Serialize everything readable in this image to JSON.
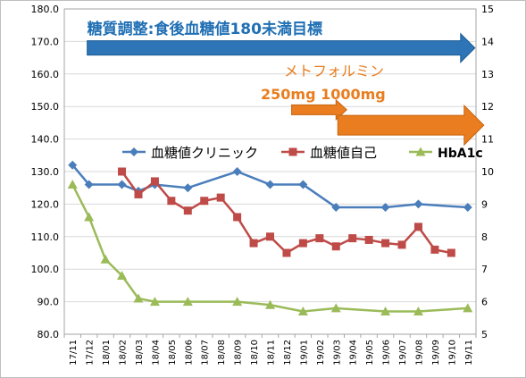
{
  "chart_data": {
    "type": "line",
    "categories": [
      "17/11",
      "17/12",
      "18/01",
      "18/02",
      "18/03",
      "18/04",
      "18/05",
      "18/06",
      "18/07",
      "18/08",
      "18/09",
      "18/10",
      "18/11",
      "18/12",
      "19/01",
      "19/02",
      "19/03",
      "19/04",
      "19/05",
      "19/06",
      "19/07",
      "19/08",
      "19/09",
      "19/10",
      "19/11"
    ],
    "y_left": {
      "ylim": [
        80,
        180
      ],
      "ticks": [
        "80.0",
        "90.0",
        "100.0",
        "110.0",
        "120.0",
        "130.0",
        "140.0",
        "150.0",
        "160.0",
        "170.0",
        "180.0"
      ]
    },
    "y_right": {
      "ylim": [
        5,
        15
      ],
      "ticks": [
        "5",
        "6",
        "7",
        "8",
        "9",
        "10",
        "11",
        "12",
        "13",
        "14",
        "15"
      ]
    },
    "grid": true,
    "legend_placement": "center",
    "series": [
      {
        "name": "血糖値クリニック",
        "axis": "left",
        "color": "#4a7ebb",
        "marker": "diamond",
        "points": [
          {
            "x": "17/11",
            "y": 132
          },
          {
            "x": "17/12",
            "y": 126
          },
          {
            "x": "18/02",
            "y": 126
          },
          {
            "x": "18/03",
            "y": 124
          },
          {
            "x": "18/04",
            "y": 126
          },
          {
            "x": "18/06",
            "y": 125
          },
          {
            "x": "18/09",
            "y": 130
          },
          {
            "x": "18/11",
            "y": 126
          },
          {
            "x": "19/01",
            "y": 126
          },
          {
            "x": "19/03",
            "y": 119
          },
          {
            "x": "19/06",
            "y": 119
          },
          {
            "x": "19/08",
            "y": 120
          },
          {
            "x": "19/11",
            "y": 119
          }
        ]
      },
      {
        "name": "血糖値自己",
        "axis": "left",
        "color": "#be4b48",
        "marker": "square",
        "points": [
          {
            "x": "18/02",
            "y": 130
          },
          {
            "x": "18/03",
            "y": 123
          },
          {
            "x": "18/04",
            "y": 127
          },
          {
            "x": "18/05",
            "y": 121
          },
          {
            "x": "18/06",
            "y": 118
          },
          {
            "x": "18/07",
            "y": 121
          },
          {
            "x": "18/08",
            "y": 122
          },
          {
            "x": "18/09",
            "y": 116
          },
          {
            "x": "18/10",
            "y": 108
          },
          {
            "x": "18/11",
            "y": 110
          },
          {
            "x": "18/12",
            "y": 105
          },
          {
            "x": "19/01",
            "y": 108
          },
          {
            "x": "19/02",
            "y": 109.5
          },
          {
            "x": "19/03",
            "y": 107
          },
          {
            "x": "19/04",
            "y": 109.5
          },
          {
            "x": "19/05",
            "y": 109
          },
          {
            "x": "19/06",
            "y": 108
          },
          {
            "x": "19/07",
            "y": 107.5
          },
          {
            "x": "19/08",
            "y": 113
          },
          {
            "x": "19/09",
            "y": 106
          },
          {
            "x": "19/10",
            "y": 105
          }
        ]
      },
      {
        "name": "HbA1c",
        "axis": "right",
        "color": "#9bbb59",
        "marker": "triangle",
        "points": [
          {
            "x": "17/11",
            "y": 9.6
          },
          {
            "x": "17/12",
            "y": 8.6
          },
          {
            "x": "18/01",
            "y": 7.3
          },
          {
            "x": "18/02",
            "y": 6.8
          },
          {
            "x": "18/03",
            "y": 6.1
          },
          {
            "x": "18/04",
            "y": 6.0
          },
          {
            "x": "18/06",
            "y": 6.0
          },
          {
            "x": "18/09",
            "y": 6.0
          },
          {
            "x": "18/11",
            "y": 5.9
          },
          {
            "x": "19/01",
            "y": 5.7
          },
          {
            "x": "19/03",
            "y": 5.8
          },
          {
            "x": "19/06",
            "y": 5.7
          },
          {
            "x": "19/08",
            "y": 5.7
          },
          {
            "x": "19/11",
            "y": 5.8
          }
        ]
      }
    ],
    "annotations": [
      {
        "text": "糖質調整:食後血糖値180未満目標",
        "color": "#1f6fb4",
        "arrow_from": "17/12",
        "arrow_to": "19/11",
        "arrow_level_right": 13.8
      },
      {
        "text": "メトフォルミン",
        "color": "#e97d1f"
      },
      {
        "text": "250mg  1000mg",
        "color": "#e97d1f",
        "arrows": [
          {
            "from": "18/02",
            "to": "19/03",
            "level_right": 11.9
          },
          {
            "from": "19/03",
            "to": "19/11",
            "level_right": 11.7
          }
        ]
      }
    ]
  }
}
